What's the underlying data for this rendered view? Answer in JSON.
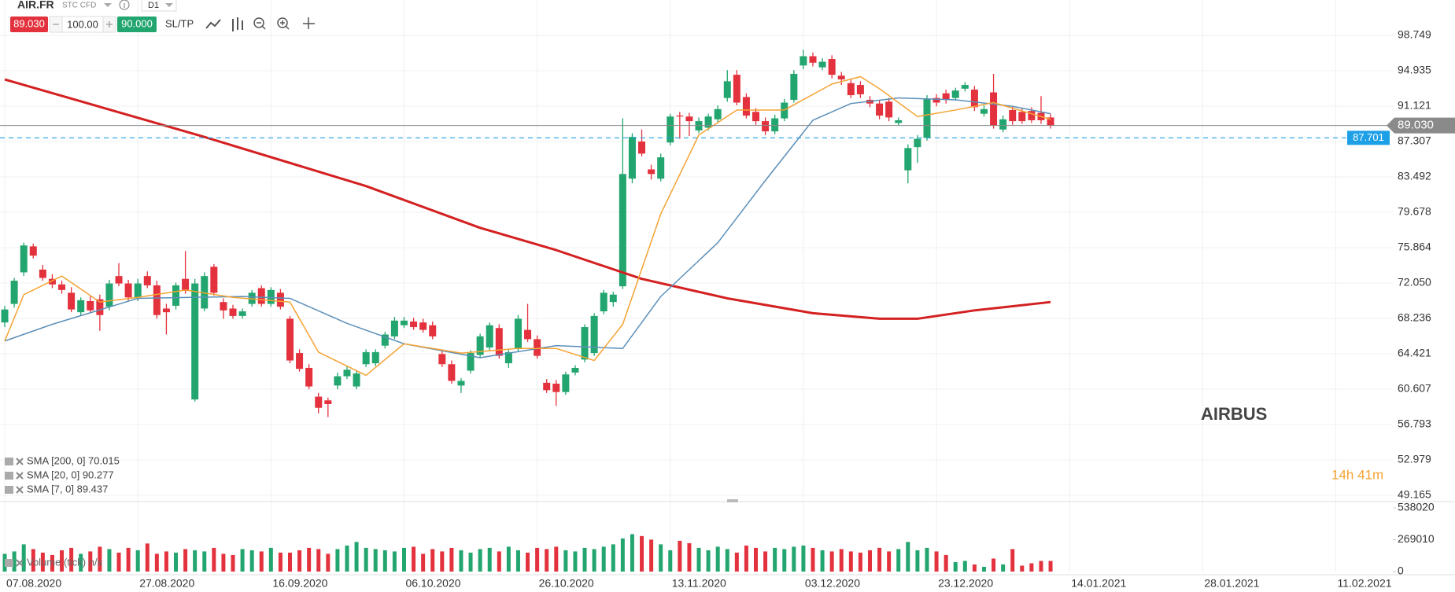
{
  "toolbar": {
    "symbol": "AIR.FR",
    "account": "STC CFD",
    "timeframe": "D1",
    "sell": "89.030",
    "volume": "100.00",
    "buy": "90.000",
    "sltp": "SL/TP"
  },
  "chart_data": {
    "type": "candlestick",
    "title": "AIRBUS",
    "countdown": "14h 41m",
    "up_color": "#22a56e",
    "down_color": "#e3323d",
    "ylim": [
      48.49,
      102.56
    ],
    "yticks": [
      {
        "value": 49.165,
        "label": "49.165"
      },
      52.979,
      56.793,
      60.607,
      64.421,
      68.236,
      {
        "value": 72.05,
        "label": "72.050"
      },
      75.864,
      79.678,
      83.492,
      87.307,
      91.121,
      94.935,
      98.749
    ],
    "xlim": [
      -0.5,
      146
    ],
    "xticks": [
      {
        "value": 0,
        "label": "07.08.2020"
      },
      {
        "value": 14,
        "label": "27.08.2020"
      },
      {
        "value": 28,
        "label": "16.09.2020"
      },
      {
        "value": 42,
        "label": "06.10.2020"
      },
      {
        "value": 56,
        "label": "26.10.2020"
      },
      {
        "value": 70,
        "label": "13.11.2020"
      },
      {
        "value": 84,
        "label": "03.12.2020"
      },
      {
        "value": 98,
        "label": "23.12.2020"
      },
      {
        "value": 112,
        "label": "14.01.2021"
      },
      {
        "value": 126,
        "label": "28.01.2021"
      },
      {
        "value": 140,
        "label": "11.02.2021"
      }
    ],
    "grid": true,
    "last_price": {
      "value": 89.03,
      "label": "89.030"
    },
    "alert_price": 87.701,
    "candles": [
      [
        67.8,
        69.6,
        67.3,
        69.2
      ],
      [
        69.8,
        72.6,
        69.4,
        72.3
      ],
      [
        73.2,
        76.4,
        72.8,
        76.1
      ],
      [
        76.0,
        76.3,
        74.7,
        75.0
      ],
      [
        73.5,
        74.0,
        72.3,
        72.6
      ],
      [
        72.5,
        73.0,
        71.5,
        71.9
      ],
      [
        71.9,
        72.3,
        70.9,
        71.3
      ],
      [
        71.0,
        71.6,
        68.9,
        69.2
      ],
      [
        68.9,
        70.5,
        68.5,
        70.2
      ],
      [
        70.1,
        70.6,
        68.8,
        69.1
      ],
      [
        70.3,
        70.8,
        66.9,
        68.6
      ],
      [
        69.5,
        72.4,
        69.1,
        72.0
      ],
      [
        72.8,
        74.2,
        71.7,
        72.0
      ],
      [
        72.0,
        72.4,
        70.1,
        70.5
      ],
      [
        70.5,
        72.5,
        70.1,
        72.0
      ],
      [
        72.8,
        73.3,
        71.5,
        71.8
      ],
      [
        71.8,
        72.3,
        68.2,
        68.6
      ],
      [
        69.3,
        69.8,
        66.5,
        68.9
      ],
      [
        69.6,
        72.1,
        69.2,
        71.8
      ],
      [
        72.5,
        75.5,
        70.9,
        71.2
      ],
      [
        59.5,
        72.5,
        59.3,
        72.0
      ],
      [
        69.3,
        73.2,
        69.0,
        72.8
      ],
      [
        73.8,
        74.1,
        70.7,
        71.0
      ],
      [
        70.0,
        70.4,
        68.2,
        69.1
      ],
      [
        69.3,
        69.7,
        68.2,
        68.5
      ],
      [
        68.5,
        69.3,
        68.2,
        69.0
      ],
      [
        69.8,
        71.3,
        69.5,
        71.0
      ],
      [
        71.5,
        71.8,
        69.5,
        69.8
      ],
      [
        69.8,
        71.6,
        69.5,
        71.3
      ],
      [
        71.0,
        71.4,
        69.2,
        69.5
      ],
      [
        68.2,
        68.5,
        63.4,
        63.7
      ],
      [
        64.5,
        64.9,
        62.5,
        62.8
      ],
      [
        62.9,
        63.3,
        60.6,
        60.9
      ],
      [
        59.8,
        60.2,
        58.0,
        58.6
      ],
      [
        59.4,
        59.7,
        57.6,
        59.0
      ],
      [
        61.0,
        62.4,
        60.6,
        62.0
      ],
      [
        62.0,
        63.1,
        61.7,
        62.7
      ],
      [
        60.9,
        62.6,
        60.6,
        62.3
      ],
      [
        63.3,
        64.9,
        63.0,
        64.6
      ],
      [
        63.4,
        64.9,
        63.1,
        64.6
      ],
      [
        65.3,
        66.8,
        65.0,
        66.5
      ],
      [
        66.3,
        68.4,
        66.0,
        68.0
      ],
      [
        67.5,
        68.4,
        67.2,
        68.0
      ],
      [
        67.9,
        68.3,
        67.0,
        67.3
      ],
      [
        67.8,
        68.2,
        66.7,
        67.0
      ],
      [
        67.5,
        67.9,
        66.0,
        66.3
      ],
      [
        64.4,
        64.8,
        63.0,
        63.3
      ],
      [
        63.3,
        63.7,
        61.2,
        61.5
      ],
      [
        61.0,
        61.8,
        60.2,
        61.5
      ],
      [
        62.6,
        64.8,
        62.3,
        64.5
      ],
      [
        64.3,
        66.6,
        64.0,
        66.3
      ],
      [
        65.1,
        67.8,
        64.8,
        67.5
      ],
      [
        67.2,
        67.6,
        63.9,
        64.2
      ],
      [
        63.4,
        64.9,
        62.9,
        64.6
      ],
      [
        65.0,
        68.6,
        64.7,
        68.2
      ],
      [
        67.0,
        69.8,
        65.7,
        66.0
      ],
      [
        66.0,
        66.4,
        63.9,
        64.2
      ],
      [
        61.3,
        61.7,
        60.2,
        60.5
      ],
      [
        61.2,
        61.6,
        58.8,
        60.3
      ],
      [
        60.3,
        62.5,
        60.0,
        62.2
      ],
      [
        62.4,
        63.2,
        62.1,
        62.9
      ],
      [
        63.8,
        67.6,
        63.5,
        67.3
      ],
      [
        64.5,
        68.8,
        64.2,
        68.5
      ],
      [
        69.0,
        71.3,
        68.7,
        71.0
      ],
      [
        70.0,
        71.1,
        69.5,
        70.8
      ],
      [
        71.7,
        89.8,
        71.4,
        83.8
      ],
      [
        83.3,
        88.2,
        82.8,
        87.8
      ],
      [
        87.3,
        88.6,
        85.7,
        86.0
      ],
      [
        84.3,
        84.8,
        83.2,
        83.8
      ],
      [
        83.3,
        86.0,
        83.0,
        85.6
      ],
      [
        87.2,
        90.3,
        86.9,
        90.0
      ],
      [
        90.1,
        90.5,
        87.6,
        90.0
      ],
      [
        90.0,
        90.4,
        87.9,
        89.5
      ],
      [
        88.5,
        89.9,
        88.2,
        89.5
      ],
      [
        88.8,
        90.3,
        88.5,
        90.0
      ],
      [
        89.7,
        91.2,
        89.4,
        90.8
      ],
      [
        92.0,
        95.0,
        91.6,
        93.8
      ],
      [
        94.5,
        95.0,
        91.2,
        91.5
      ],
      [
        92.1,
        92.5,
        89.8,
        90.1
      ],
      [
        90.5,
        90.9,
        89.1,
        89.5
      ],
      [
        89.5,
        89.9,
        88.0,
        88.4
      ],
      [
        88.4,
        90.2,
        88.1,
        89.8
      ],
      [
        89.8,
        91.9,
        89.5,
        91.5
      ],
      [
        91.8,
        95.0,
        91.5,
        94.6
      ],
      [
        95.5,
        97.2,
        95.1,
        96.5
      ],
      [
        96.5,
        96.9,
        95.4,
        95.8
      ],
      [
        95.3,
        96.3,
        95.0,
        95.9
      ],
      [
        96.2,
        96.6,
        94.1,
        94.5
      ],
      [
        94.4,
        94.8,
        93.4,
        94.0
      ],
      [
        93.6,
        94.0,
        92.0,
        92.3
      ],
      [
        93.4,
        93.8,
        92.0,
        92.4
      ],
      [
        91.8,
        92.2,
        91.0,
        91.4
      ],
      [
        91.4,
        91.8,
        89.7,
        90.1
      ],
      [
        91.6,
        92.0,
        89.5,
        89.9
      ],
      [
        89.3,
        89.9,
        89.0,
        89.6
      ],
      [
        84.2,
        87.0,
        82.8,
        86.6
      ],
      [
        86.7,
        88.0,
        85.0,
        87.6
      ],
      [
        87.7,
        92.3,
        87.4,
        91.9
      ],
      [
        92.0,
        92.4,
        91.1,
        91.5
      ],
      [
        92.5,
        92.9,
        91.4,
        91.8
      ],
      [
        92.0,
        93.1,
        91.7,
        92.8
      ],
      [
        93.0,
        93.7,
        92.7,
        93.4
      ],
      [
        92.9,
        93.3,
        90.6,
        91.0
      ],
      [
        90.3,
        91.2,
        90.0,
        90.8
      ],
      [
        92.6,
        94.6,
        88.7,
        89.0
      ],
      [
        88.6,
        90.1,
        88.3,
        89.7
      ],
      [
        90.7,
        91.1,
        89.1,
        89.5
      ],
      [
        90.5,
        90.9,
        89.2,
        89.5
      ],
      [
        90.6,
        91.0,
        89.3,
        89.6
      ],
      [
        90.4,
        92.2,
        89.2,
        89.6
      ],
      [
        89.9,
        90.3,
        88.7,
        89.03
      ]
    ],
    "indicators": [
      {
        "name": "SMA [200, 0] 70.015",
        "color": "#d42020",
        "x": [
          0,
          21,
          38,
          50,
          58,
          67,
          76,
          85,
          92,
          96,
          102,
          110
        ],
        "values": [
          94.0,
          87.8,
          82.5,
          78.0,
          75.6,
          72.5,
          70.4,
          68.8,
          68.2,
          68.2,
          69.1,
          70.0
        ]
      },
      {
        "name": "SMA [20, 0] 90.277",
        "color": "#5b8fb9",
        "x": [
          0,
          5,
          14,
          25,
          30,
          36,
          42,
          50,
          58,
          65,
          69,
          75,
          80,
          85,
          89,
          94,
          100,
          106,
          110
        ],
        "values": [
          65.8,
          67.6,
          70.4,
          70.6,
          70.4,
          67.7,
          65.5,
          64.0,
          65.3,
          65.0,
          70.6,
          76.4,
          83.1,
          89.6,
          91.4,
          92.0,
          91.8,
          91.1,
          90.3
        ]
      },
      {
        "name": "SMA [7, 0] 89.437",
        "color": "#f5a233",
        "x": [
          0,
          2,
          6,
          10,
          14,
          19,
          24,
          30,
          33,
          38,
          42,
          48,
          54,
          58,
          62,
          65,
          69,
          73,
          77,
          82,
          87,
          90,
          92,
          96,
          100,
          104,
          110
        ],
        "values": [
          65.8,
          70.8,
          72.8,
          70.0,
          70.5,
          71.3,
          70.5,
          70.0,
          64.6,
          62.1,
          65.5,
          64.5,
          65.0,
          65.0,
          63.7,
          67.6,
          79.5,
          88.0,
          90.7,
          90.7,
          93.5,
          94.3,
          93.0,
          90.0,
          90.7,
          91.5,
          89.7
        ]
      }
    ],
    "volume": {
      "name": "Volume (tick) n/s",
      "ylim": [
        0,
        538020
      ],
      "yticks": [
        0,
        269010,
        538020
      ],
      "values": [
        150000,
        170000,
        230000,
        190000,
        160000,
        140000,
        180000,
        200000,
        150000,
        170000,
        210000,
        190000,
        160000,
        200000,
        180000,
        237000,
        150000,
        170000,
        160000,
        190000,
        180000,
        170000,
        200000,
        150000,
        140000,
        190000,
        180000,
        170000,
        200000,
        160000,
        160000,
        180000,
        200000,
        190000,
        150000,
        190000,
        220000,
        250000,
        200000,
        190000,
        180000,
        170000,
        200000,
        210000,
        150000,
        190000,
        170000,
        200000,
        180000,
        160000,
        190000,
        200000,
        170000,
        210000,
        180000,
        160000,
        200000,
        190000,
        210000,
        180000,
        170000,
        200000,
        190000,
        210000,
        230000,
        280000,
        316000,
        300000,
        270000,
        230000,
        180000,
        260000,
        240000,
        200000,
        180000,
        210000,
        190000,
        160000,
        220000,
        200000,
        170000,
        200000,
        190000,
        210000,
        220000,
        200000,
        180000,
        170000,
        190000,
        170000,
        160000,
        180000,
        200000,
        170000,
        190000,
        250000,
        180000,
        200000,
        170000,
        140000,
        80000,
        90000,
        60000,
        40000,
        110000,
        60000,
        190000,
        50000,
        70000,
        90000,
        90000
      ]
    }
  }
}
